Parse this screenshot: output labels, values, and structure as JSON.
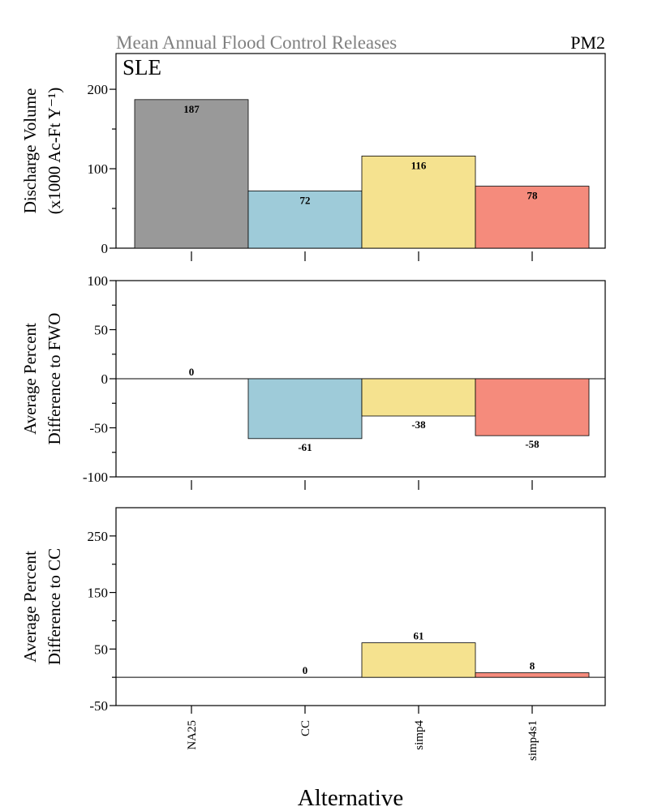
{
  "header": {
    "title": "Mean Annual Flood Control Releases",
    "code": "PM2",
    "panel_tag": "SLE"
  },
  "colors": {
    "title": "#808080",
    "NA25": "#999999",
    "CC": "#9ecbd9",
    "simp4": "#f5e28f",
    "simp4s1": "#f58b7c"
  },
  "chart_data": [
    {
      "type": "bar",
      "categories": [
        "NA25",
        "CC",
        "simp4",
        "simp4s1"
      ],
      "values": [
        187,
        72,
        116,
        78
      ],
      "labels": [
        "187",
        "72",
        "116",
        "78"
      ],
      "ylabel": [
        "Discharge Volume",
        "(x1000 Ac-Ft Y⁻¹)"
      ],
      "ylim": [
        0,
        245
      ],
      "yticks": [
        0,
        100,
        200
      ],
      "yminor": [
        50,
        150
      ]
    },
    {
      "type": "bar",
      "categories": [
        "NA25",
        "CC",
        "simp4",
        "simp4s1"
      ],
      "values": [
        0,
        -61,
        -38,
        -58
      ],
      "labels": [
        "0",
        "-61",
        "-38",
        "-58"
      ],
      "ylabel": [
        "Average Percent",
        "Difference to FWO"
      ],
      "ylim": [
        -100,
        100
      ],
      "yticks": [
        -100,
        -50,
        0,
        50,
        100
      ],
      "yminor": [
        -75,
        -25,
        25,
        75
      ]
    },
    {
      "type": "bar",
      "categories": [
        "NA25",
        "CC",
        "simp4",
        "simp4s1"
      ],
      "values": [
        null,
        0,
        61,
        8
      ],
      "labels": [
        "",
        "0",
        "61",
        "8"
      ],
      "ylabel": [
        "Average Percent",
        "Difference to CC"
      ],
      "ylim": [
        -50,
        300
      ],
      "yticks": [
        -50,
        50,
        150,
        250
      ],
      "yminor": [
        0,
        100,
        200
      ]
    }
  ],
  "xaxis": {
    "label": "Alternative",
    "categories": [
      "NA25",
      "CC",
      "simp4",
      "simp4s1"
    ]
  }
}
